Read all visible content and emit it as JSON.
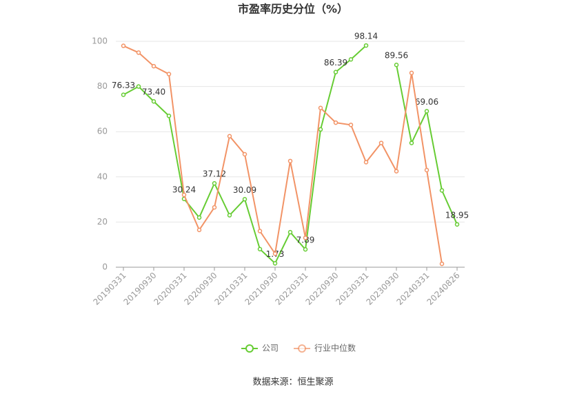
{
  "chart_data": {
    "type": "line",
    "title": "市盈率历史分位（%）",
    "categories": [
      "20190331",
      null,
      "20190930",
      null,
      "20200331",
      null,
      "20200930",
      null,
      "20210331",
      null,
      "20210930",
      null,
      "20220331",
      null,
      "20220930",
      null,
      "20230331",
      null,
      "20230930",
      null,
      "20240331",
      null,
      "20240826"
    ],
    "series": [
      {
        "name": "公司",
        "color": "#66cc33",
        "values": [
          76.33,
          80,
          73.4,
          67,
          30.24,
          22,
          37.12,
          23,
          30.09,
          8,
          1.73,
          15.5,
          7.89,
          61,
          86.39,
          92,
          98.14,
          null,
          89.56,
          55,
          69.06,
          34,
          18.95
        ],
        "value_labels": [
          "76.33",
          null,
          "73.40",
          null,
          "30.24",
          null,
          "37.12",
          null,
          "30.09",
          null,
          "1.73",
          null,
          "7.89",
          null,
          "86.39",
          null,
          "98.14",
          null,
          "89.56",
          null,
          "69.06",
          null,
          "18.95"
        ]
      },
      {
        "name": "行业中位数",
        "color": "#f29366",
        "values": [
          98,
          95,
          89,
          85.5,
          32,
          16.5,
          26.5,
          58,
          50,
          16,
          6,
          47,
          13,
          70.5,
          64,
          63,
          46.5,
          55,
          42.5,
          86,
          43,
          1.5,
          null
        ]
      }
    ],
    "ylim": [
      0,
      100
    ],
    "yticks": [
      0,
      20,
      40,
      60,
      80,
      100
    ],
    "grid": true,
    "source": "数据来源：恒生聚源"
  }
}
